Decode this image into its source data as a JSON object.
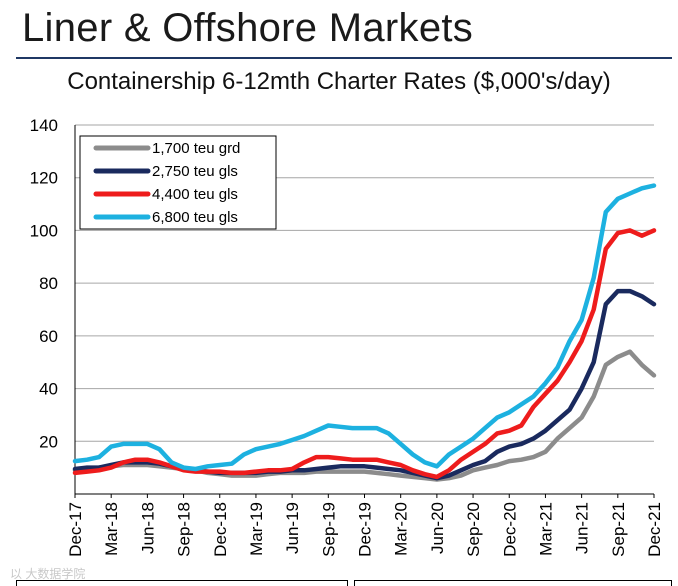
{
  "header": {
    "title": "Liner & Offshore Markets",
    "watermark": "以 大数据学院"
  },
  "chart_data": {
    "type": "line",
    "title": "Containership 6-12mth Charter Rates ($,000's/day)",
    "xlabel": "",
    "ylabel": "",
    "ylim": [
      0,
      140
    ],
    "yticks": [
      20,
      40,
      60,
      80,
      100,
      120,
      140
    ],
    "grid": true,
    "legend_position": "top-left",
    "x_tick_labels": [
      "Dec-17",
      "Mar-18",
      "Jun-18",
      "Sep-18",
      "Dec-18",
      "Mar-19",
      "Jun-19",
      "Sep-19",
      "Dec-19",
      "Mar-20",
      "Jun-20",
      "Sep-20",
      "Dec-20",
      "Mar-21",
      "Jun-21",
      "Sep-21",
      "Dec-21"
    ],
    "x": [
      "Dec-17",
      "Jan-18",
      "Feb-18",
      "Mar-18",
      "Apr-18",
      "May-18",
      "Jun-18",
      "Jul-18",
      "Aug-18",
      "Sep-18",
      "Oct-18",
      "Nov-18",
      "Dec-18",
      "Jan-19",
      "Feb-19",
      "Mar-19",
      "Apr-19",
      "May-19",
      "Jun-19",
      "Jul-19",
      "Aug-19",
      "Sep-19",
      "Oct-19",
      "Nov-19",
      "Dec-19",
      "Jan-20",
      "Feb-20",
      "Mar-20",
      "Apr-20",
      "May-20",
      "Jun-20",
      "Jul-20",
      "Aug-20",
      "Sep-20",
      "Oct-20",
      "Nov-20",
      "Dec-20",
      "Jan-21",
      "Feb-21",
      "Mar-21",
      "Apr-21",
      "May-21",
      "Jun-21",
      "Jul-21",
      "Aug-21",
      "Sep-21",
      "Oct-21",
      "Nov-21",
      "Dec-21"
    ],
    "series": [
      {
        "name": "1,700 teu grd",
        "color": "#8c8c8c",
        "values": [
          9,
          9.5,
          10,
          10.5,
          11,
          11,
          11,
          10.5,
          10,
          9.5,
          9,
          8,
          7.5,
          7,
          7,
          7,
          7.5,
          8,
          8,
          8,
          8.5,
          8.5,
          8.5,
          8.5,
          8.5,
          8,
          7.5,
          7,
          6.5,
          6,
          5.5,
          6,
          7,
          9,
          10,
          11,
          12.5,
          13,
          14,
          16,
          21,
          25,
          29,
          37,
          49,
          52,
          54,
          49,
          45
        ]
      },
      {
        "name": "2,750 teu gls",
        "color": "#1a2a5e",
        "values": [
          9.5,
          10,
          10,
          11,
          12,
          12,
          12,
          11.5,
          10.5,
          9.5,
          9,
          8.5,
          8,
          8,
          8,
          8,
          8.5,
          8.5,
          9,
          9,
          9.5,
          10,
          10.5,
          10.5,
          10.5,
          10,
          9.5,
          9,
          8,
          7,
          6,
          7,
          9,
          11,
          12.5,
          16,
          18,
          19,
          21,
          24,
          28,
          32,
          40,
          50,
          72,
          77,
          77,
          75,
          72
        ]
      },
      {
        "name": "4,400 teu gls",
        "color": "#ee1c1c",
        "values": [
          8,
          8.5,
          9,
          10,
          12,
          13,
          13,
          12,
          10.5,
          9,
          8.5,
          8.5,
          8.5,
          8,
          8,
          8.5,
          9,
          9,
          9.5,
          12,
          14,
          14,
          13.5,
          13,
          13,
          13,
          12,
          11,
          9,
          7.5,
          6.5,
          9,
          13,
          16,
          19,
          23,
          24,
          26,
          33,
          38,
          43,
          50,
          58,
          70,
          93,
          99,
          100,
          98,
          100
        ]
      },
      {
        "name": "6,800 teu gls",
        "color": "#1db1e0",
        "values": [
          12.5,
          13,
          14,
          18,
          19,
          19,
          19,
          17,
          12,
          10,
          9.5,
          10.5,
          11,
          11.5,
          15,
          17,
          18,
          19,
          20.5,
          22,
          24,
          26,
          25.5,
          25,
          25,
          25,
          23,
          19,
          15,
          12,
          10.5,
          15,
          18,
          21,
          25,
          29,
          31,
          34,
          37,
          42,
          48,
          58,
          66,
          82,
          107,
          112,
          114,
          116,
          117
        ]
      }
    ]
  }
}
